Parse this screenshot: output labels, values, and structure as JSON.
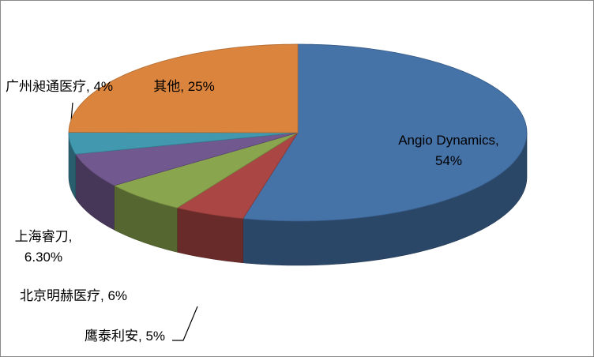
{
  "chart_data": {
    "type": "pie3d",
    "categories": [
      "Angio Dynamics",
      "鹰泰利安",
      "北京明赫医疗",
      "上海睿刀",
      "广州昶通医疗",
      "其他"
    ],
    "values": [
      54,
      5,
      6,
      6.3,
      4,
      25
    ],
    "value_labels": [
      "54%",
      "5%",
      "6%",
      "6.30%",
      "4%",
      "25%"
    ],
    "label_separator": ", ",
    "colors": [
      "#4572A7",
      "#AA4643",
      "#89A54E",
      "#71588F",
      "#4198AF",
      "#DB843D"
    ]
  }
}
